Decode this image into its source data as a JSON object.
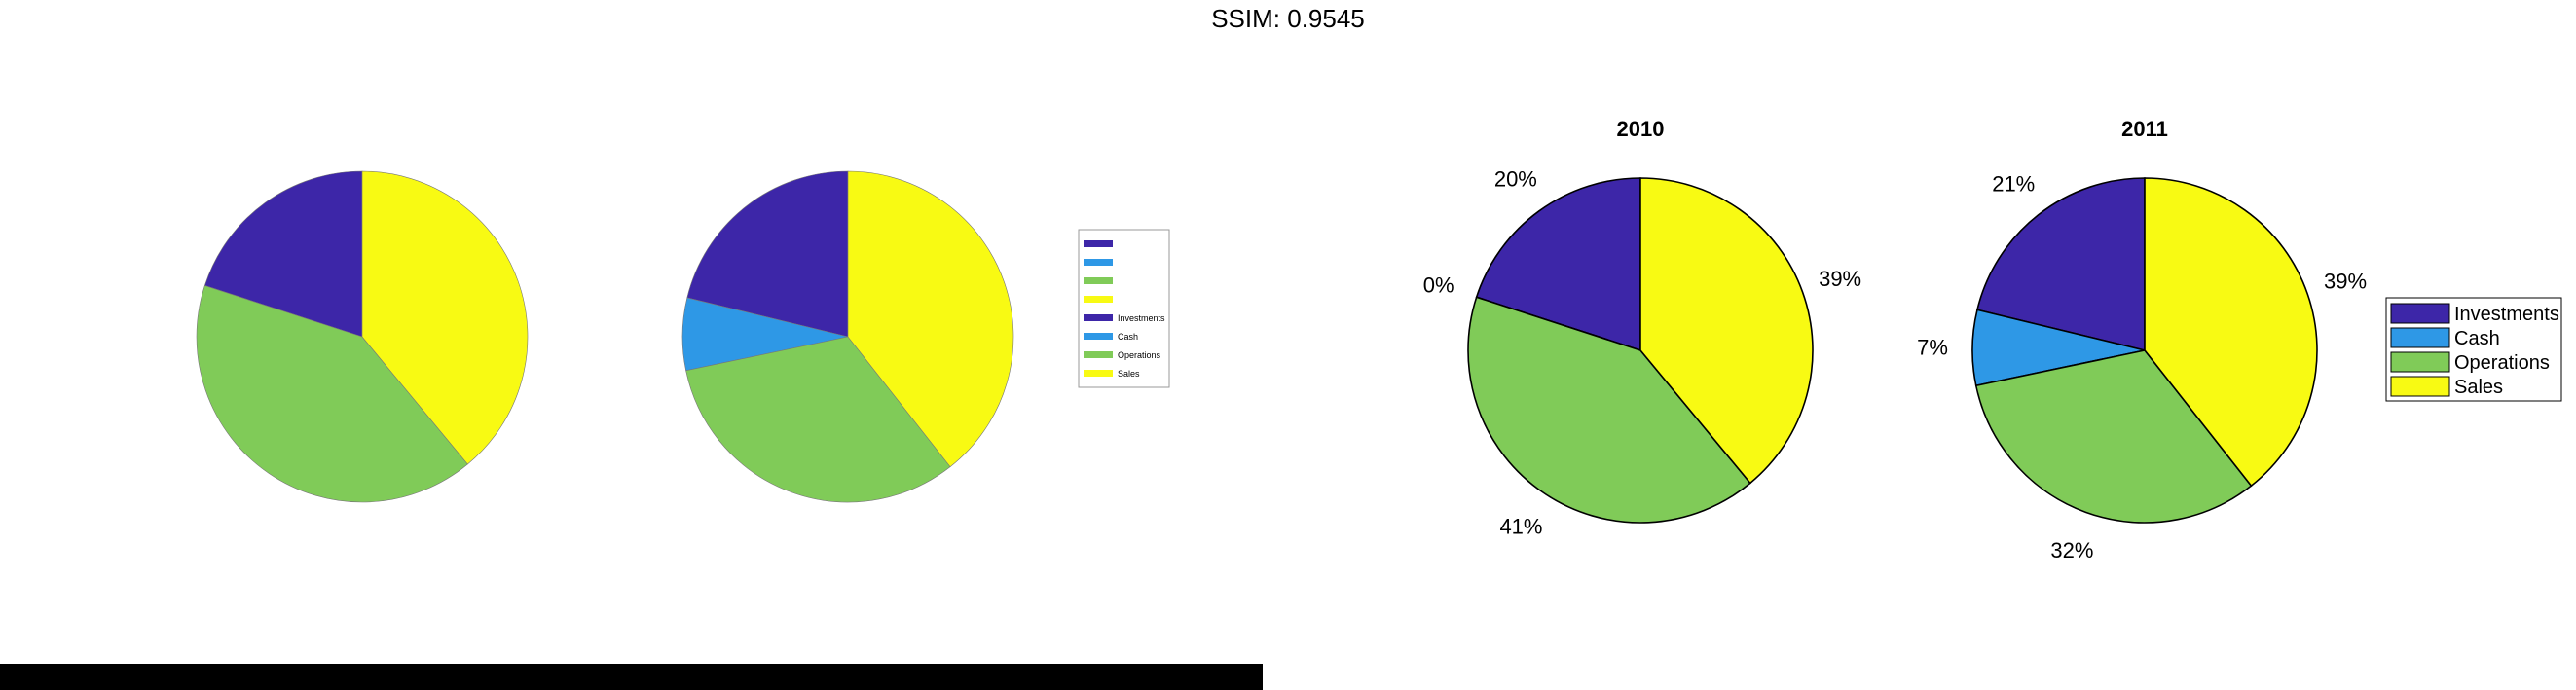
{
  "header": {
    "text": "SSIM: 0.9545"
  },
  "colors": {
    "investments": "#3d26a8",
    "cash": "#2e98e6",
    "operations": "#80cb58",
    "sales": "#f8fa13",
    "outline": "#000000"
  },
  "legend": {
    "entries": [
      "Investments",
      "Cash",
      "Operations",
      "Sales"
    ]
  },
  "chart_data": [
    {
      "type": "pie",
      "panel": "left-pie-1",
      "categories": [
        "Investments",
        "Cash",
        "Operations",
        "Sales"
      ],
      "values": [
        20,
        0,
        41,
        39
      ]
    },
    {
      "type": "pie",
      "panel": "left-pie-2",
      "categories": [
        "Investments",
        "Cash",
        "Operations",
        "Sales"
      ],
      "values": [
        21,
        7,
        32,
        39
      ]
    },
    {
      "type": "pie",
      "panel": "right-pie-1",
      "title": "2010",
      "categories": [
        "Investments",
        "Cash",
        "Operations",
        "Sales"
      ],
      "values": [
        20,
        0,
        41,
        39
      ],
      "labels": [
        "20%",
        "0%",
        "41%",
        "39%"
      ]
    },
    {
      "type": "pie",
      "panel": "right-pie-2",
      "title": "2011",
      "categories": [
        "Investments",
        "Cash",
        "Operations",
        "Sales"
      ],
      "values": [
        21,
        7,
        32,
        39
      ],
      "labels": [
        "21%",
        "7%",
        "32%",
        "39%"
      ]
    }
  ]
}
